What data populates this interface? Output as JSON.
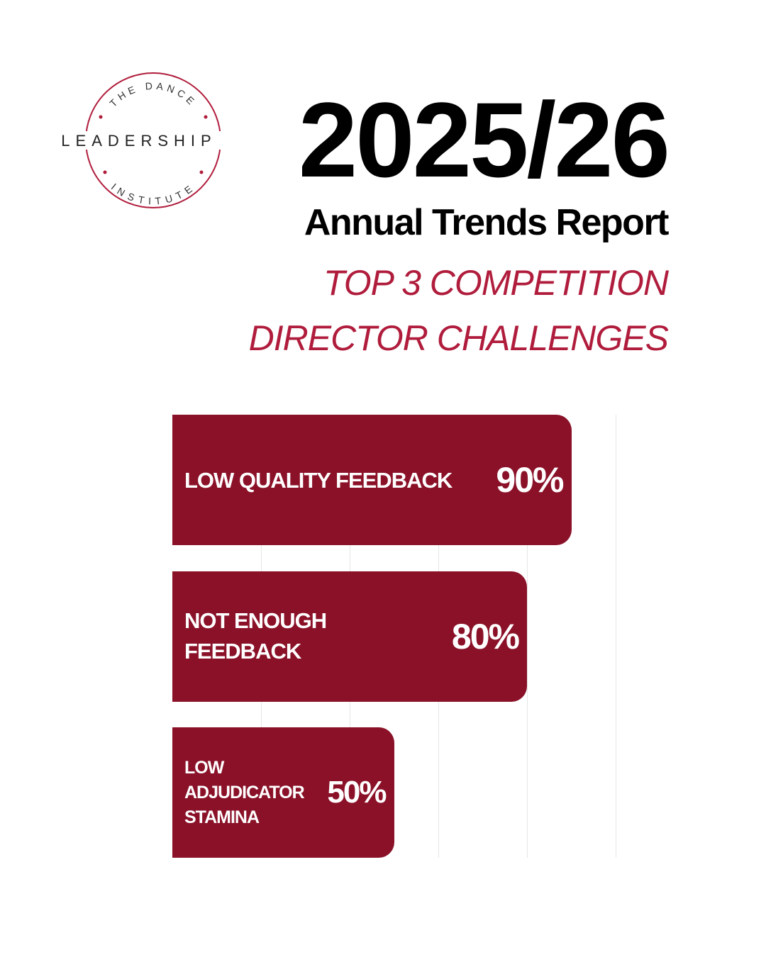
{
  "logo": {
    "top": "THE DANCE",
    "main": "LEADERSHIP",
    "bottom": "INSTITUTE"
  },
  "chart_data": {
    "type": "barh",
    "title": "2025/26",
    "subtitle": "Annual Trends Report",
    "annotations": [
      "TOP 3 COMPETITION DIRECTOR CHALLENGES"
    ],
    "categories": [
      "LOW QUALITY FEEDBACK",
      "NOT ENOUGH FEEDBACK",
      "LOW ADJUDICATOR STAMINA"
    ],
    "values": [
      90,
      80,
      50
    ],
    "value_labels": [
      "90%",
      "80%",
      "50%"
    ],
    "color": "#8a1128",
    "xlim": [
      0,
      100
    ],
    "xticks": [
      20,
      40,
      60,
      80,
      100
    ],
    "grid": true
  }
}
